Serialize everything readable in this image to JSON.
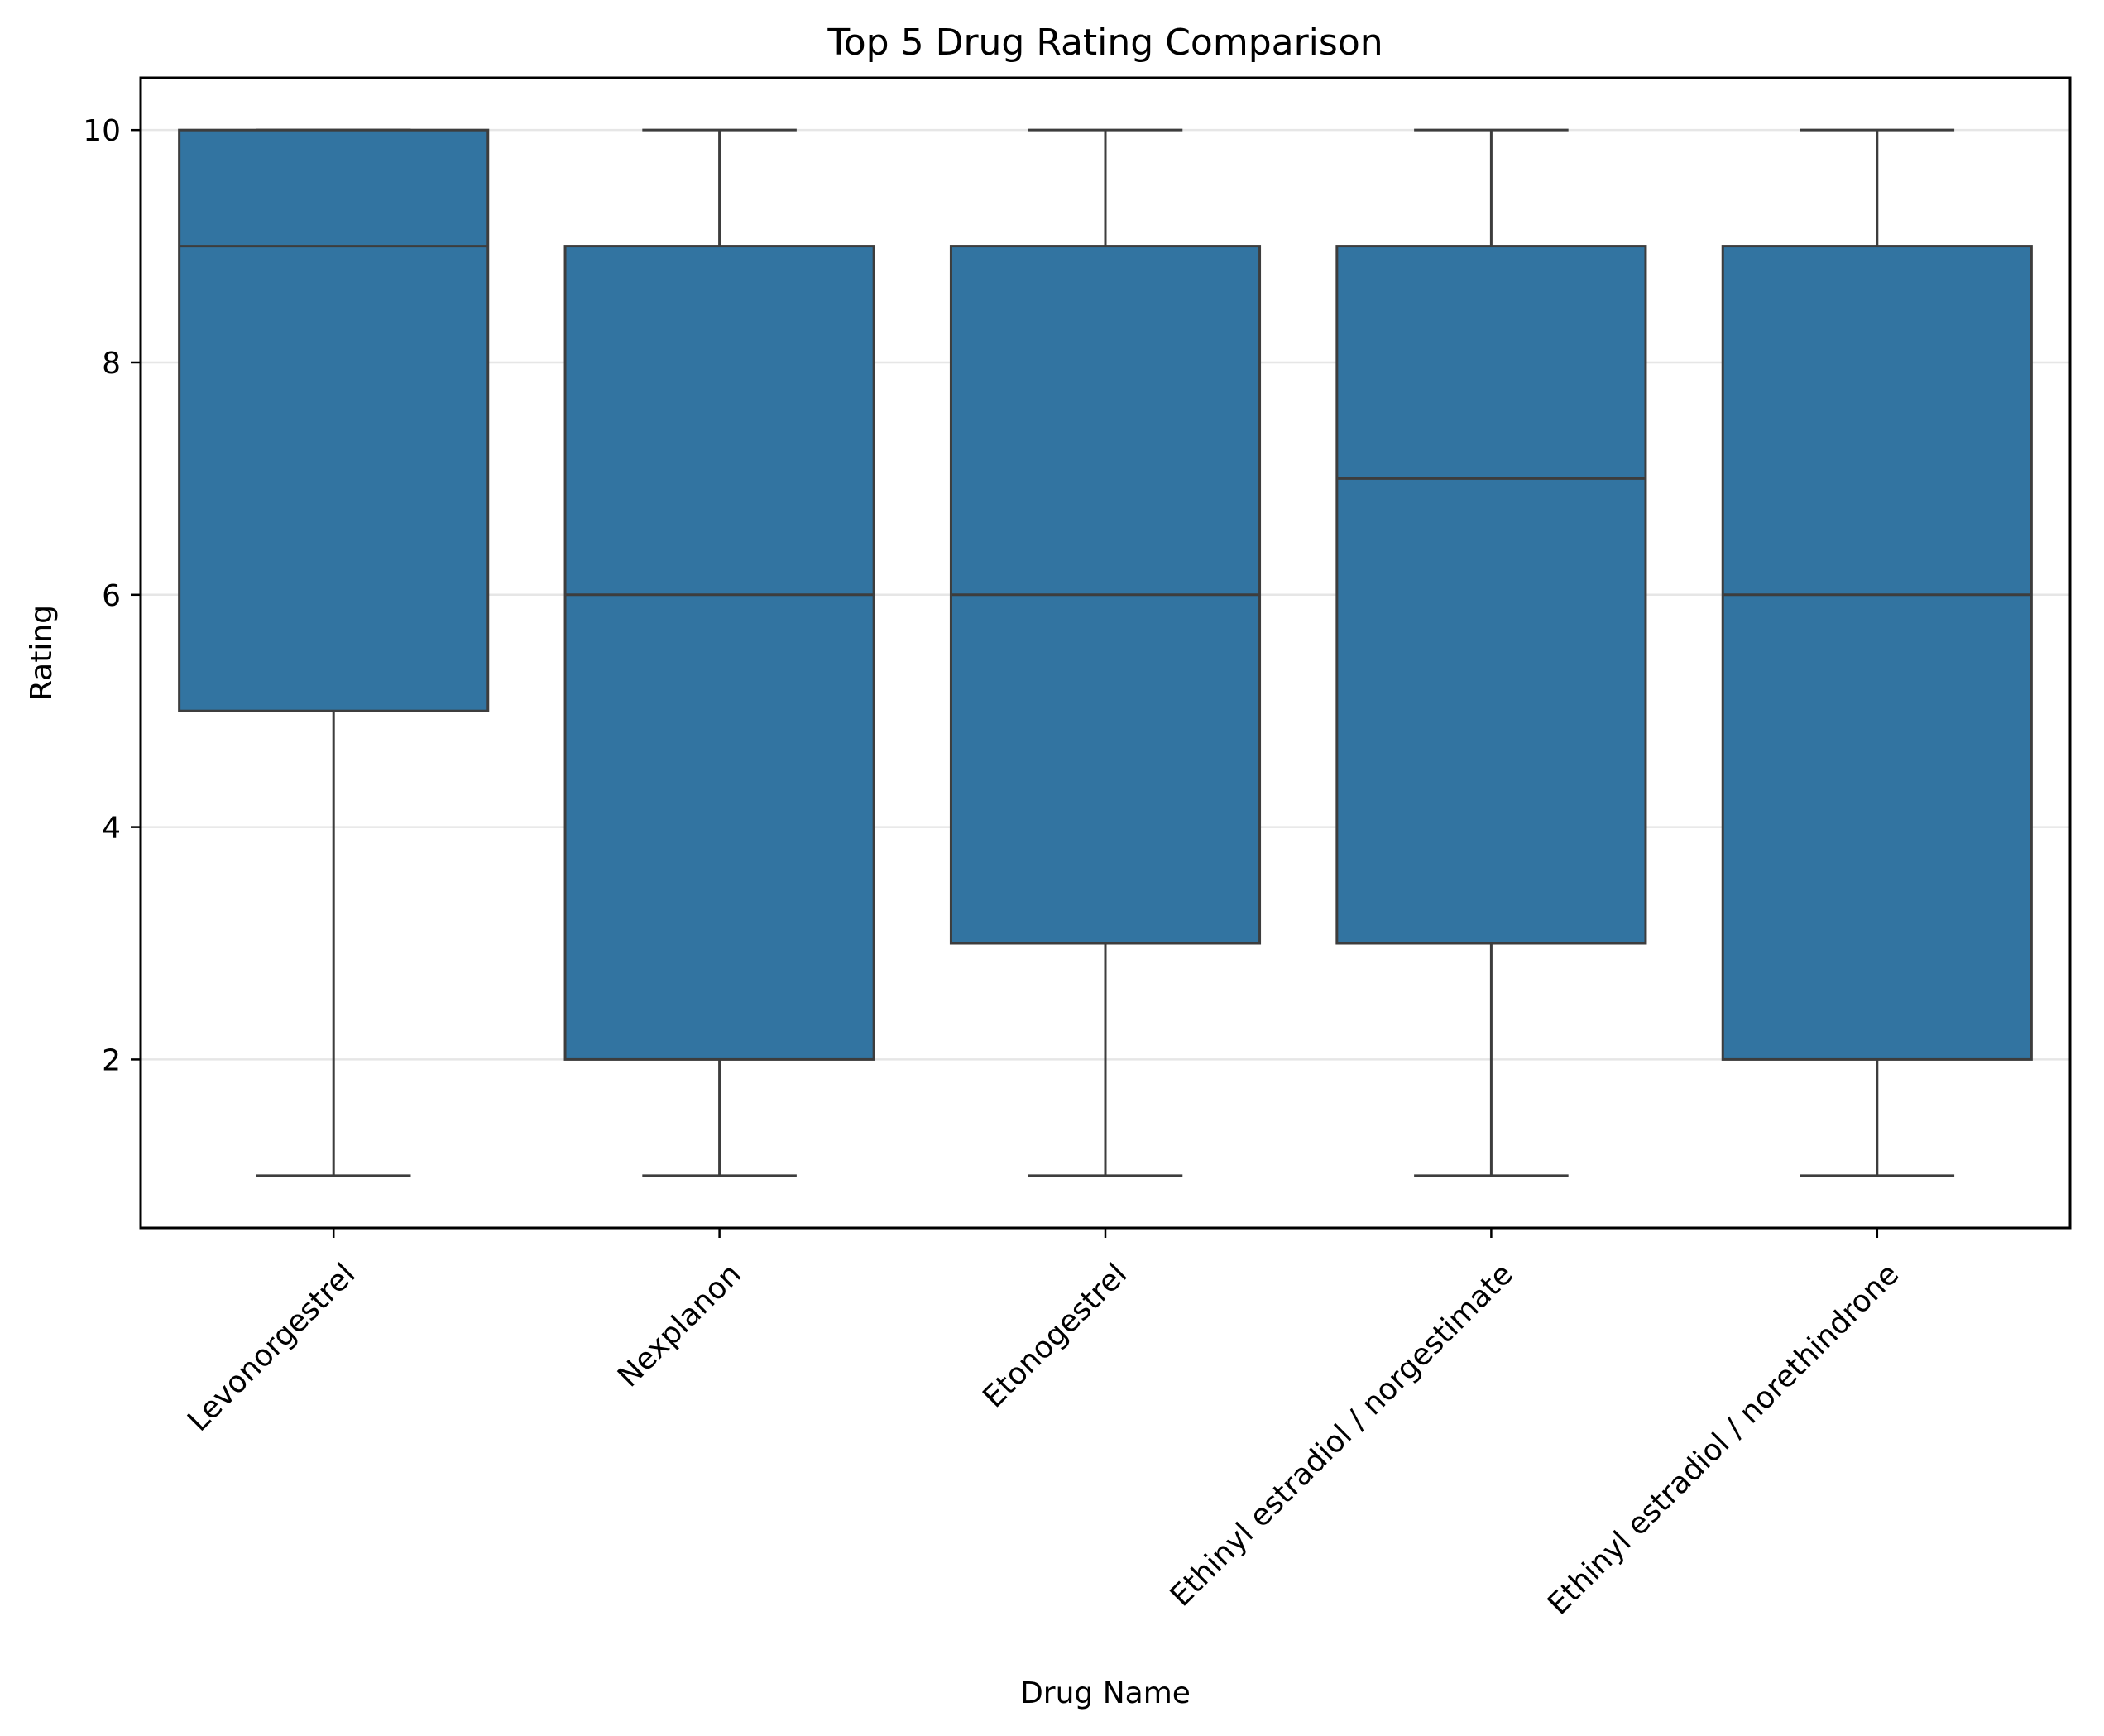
{
  "chart_data": {
    "type": "box",
    "title": "Top 5 Drug Rating Comparison",
    "xlabel": "Drug Name",
    "ylabel": "Rating",
    "categories": [
      "Levonorgestrel",
      "Nexplanon",
      "Etonogestrel",
      "Ethinyl estradiol / norgestimate",
      "Ethinyl estradiol / norethindrone"
    ],
    "boxes": [
      {
        "category": "Levonorgestrel",
        "whisker_low": 1,
        "q1": 5,
        "median": 9,
        "q3": 10,
        "whisker_high": 10
      },
      {
        "category": "Nexplanon",
        "whisker_low": 1,
        "q1": 2,
        "median": 6,
        "q3": 9,
        "whisker_high": 10
      },
      {
        "category": "Etonogestrel",
        "whisker_low": 1,
        "q1": 3,
        "median": 6,
        "q3": 9,
        "whisker_high": 10
      },
      {
        "category": "Ethinyl estradiol / norgestimate",
        "whisker_low": 1,
        "q1": 3,
        "median": 7,
        "q3": 9,
        "whisker_high": 10
      },
      {
        "category": "Ethinyl estradiol / norethindrone",
        "whisker_low": 1,
        "q1": 2,
        "median": 6,
        "q3": 9,
        "whisker_high": 10
      }
    ],
    "yticks": [
      2,
      4,
      6,
      8,
      10
    ],
    "ylim": [
      0.55,
      10.45
    ],
    "grid": "horizontal",
    "x_tick_rotation": 45,
    "colors": {
      "box_fill": "#3274a1",
      "line": "#3d3d3d",
      "grid": "#e6e6e6",
      "axes": "#000000"
    }
  }
}
